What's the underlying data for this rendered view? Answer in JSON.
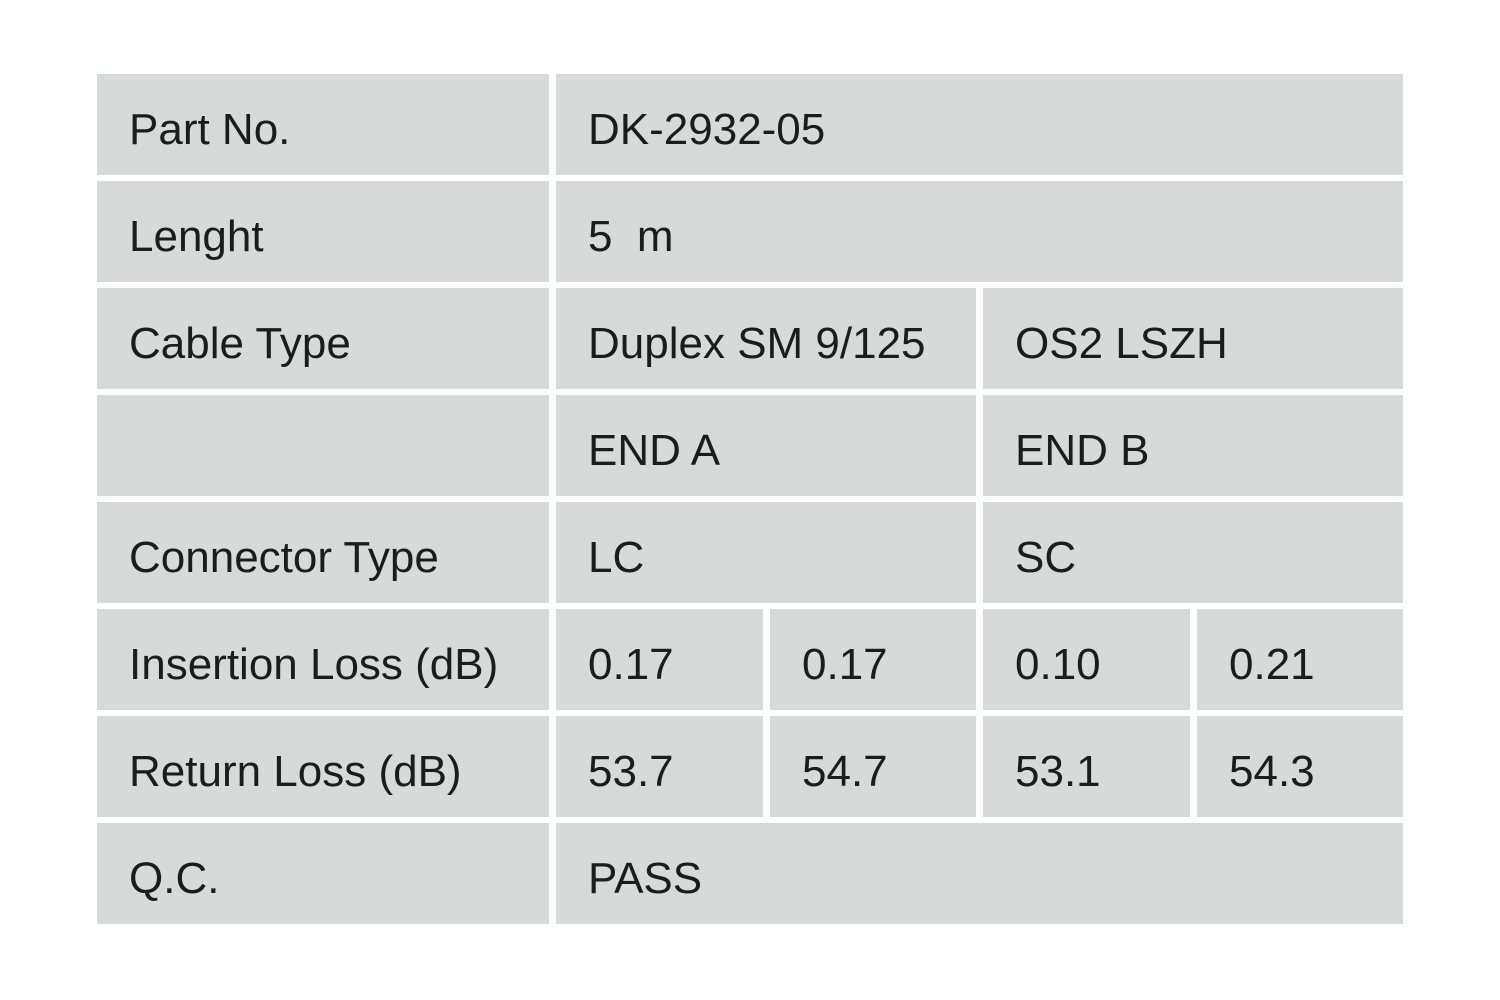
{
  "colors": {
    "page_background": "#ffffff",
    "cell_background": "#d8d9d9",
    "text": "#1c1c1c"
  },
  "table": {
    "description": "Fiber patch cable test data table",
    "rows": [
      {
        "label": "Part No.",
        "values": [
          "DK-2932-05"
        ]
      },
      {
        "label": "Lenght",
        "values": [
          "5  m"
        ]
      },
      {
        "label": "Cable Type",
        "values": [
          "Duplex SM 9/125",
          "OS2 LSZH"
        ]
      },
      {
        "label": "",
        "values": [
          "END A",
          "END B"
        ]
      },
      {
        "label": "Connector Type",
        "values": [
          "LC",
          "SC"
        ]
      },
      {
        "label": "Insertion Loss (dB)",
        "values": [
          "0.17",
          "0.17",
          "0.10",
          "0.21"
        ]
      },
      {
        "label": "Return Loss (dB)",
        "values": [
          "53.7",
          "54.7",
          "53.1",
          "54.3"
        ]
      },
      {
        "label": "Q.C.",
        "values": [
          "PASS"
        ]
      }
    ]
  }
}
